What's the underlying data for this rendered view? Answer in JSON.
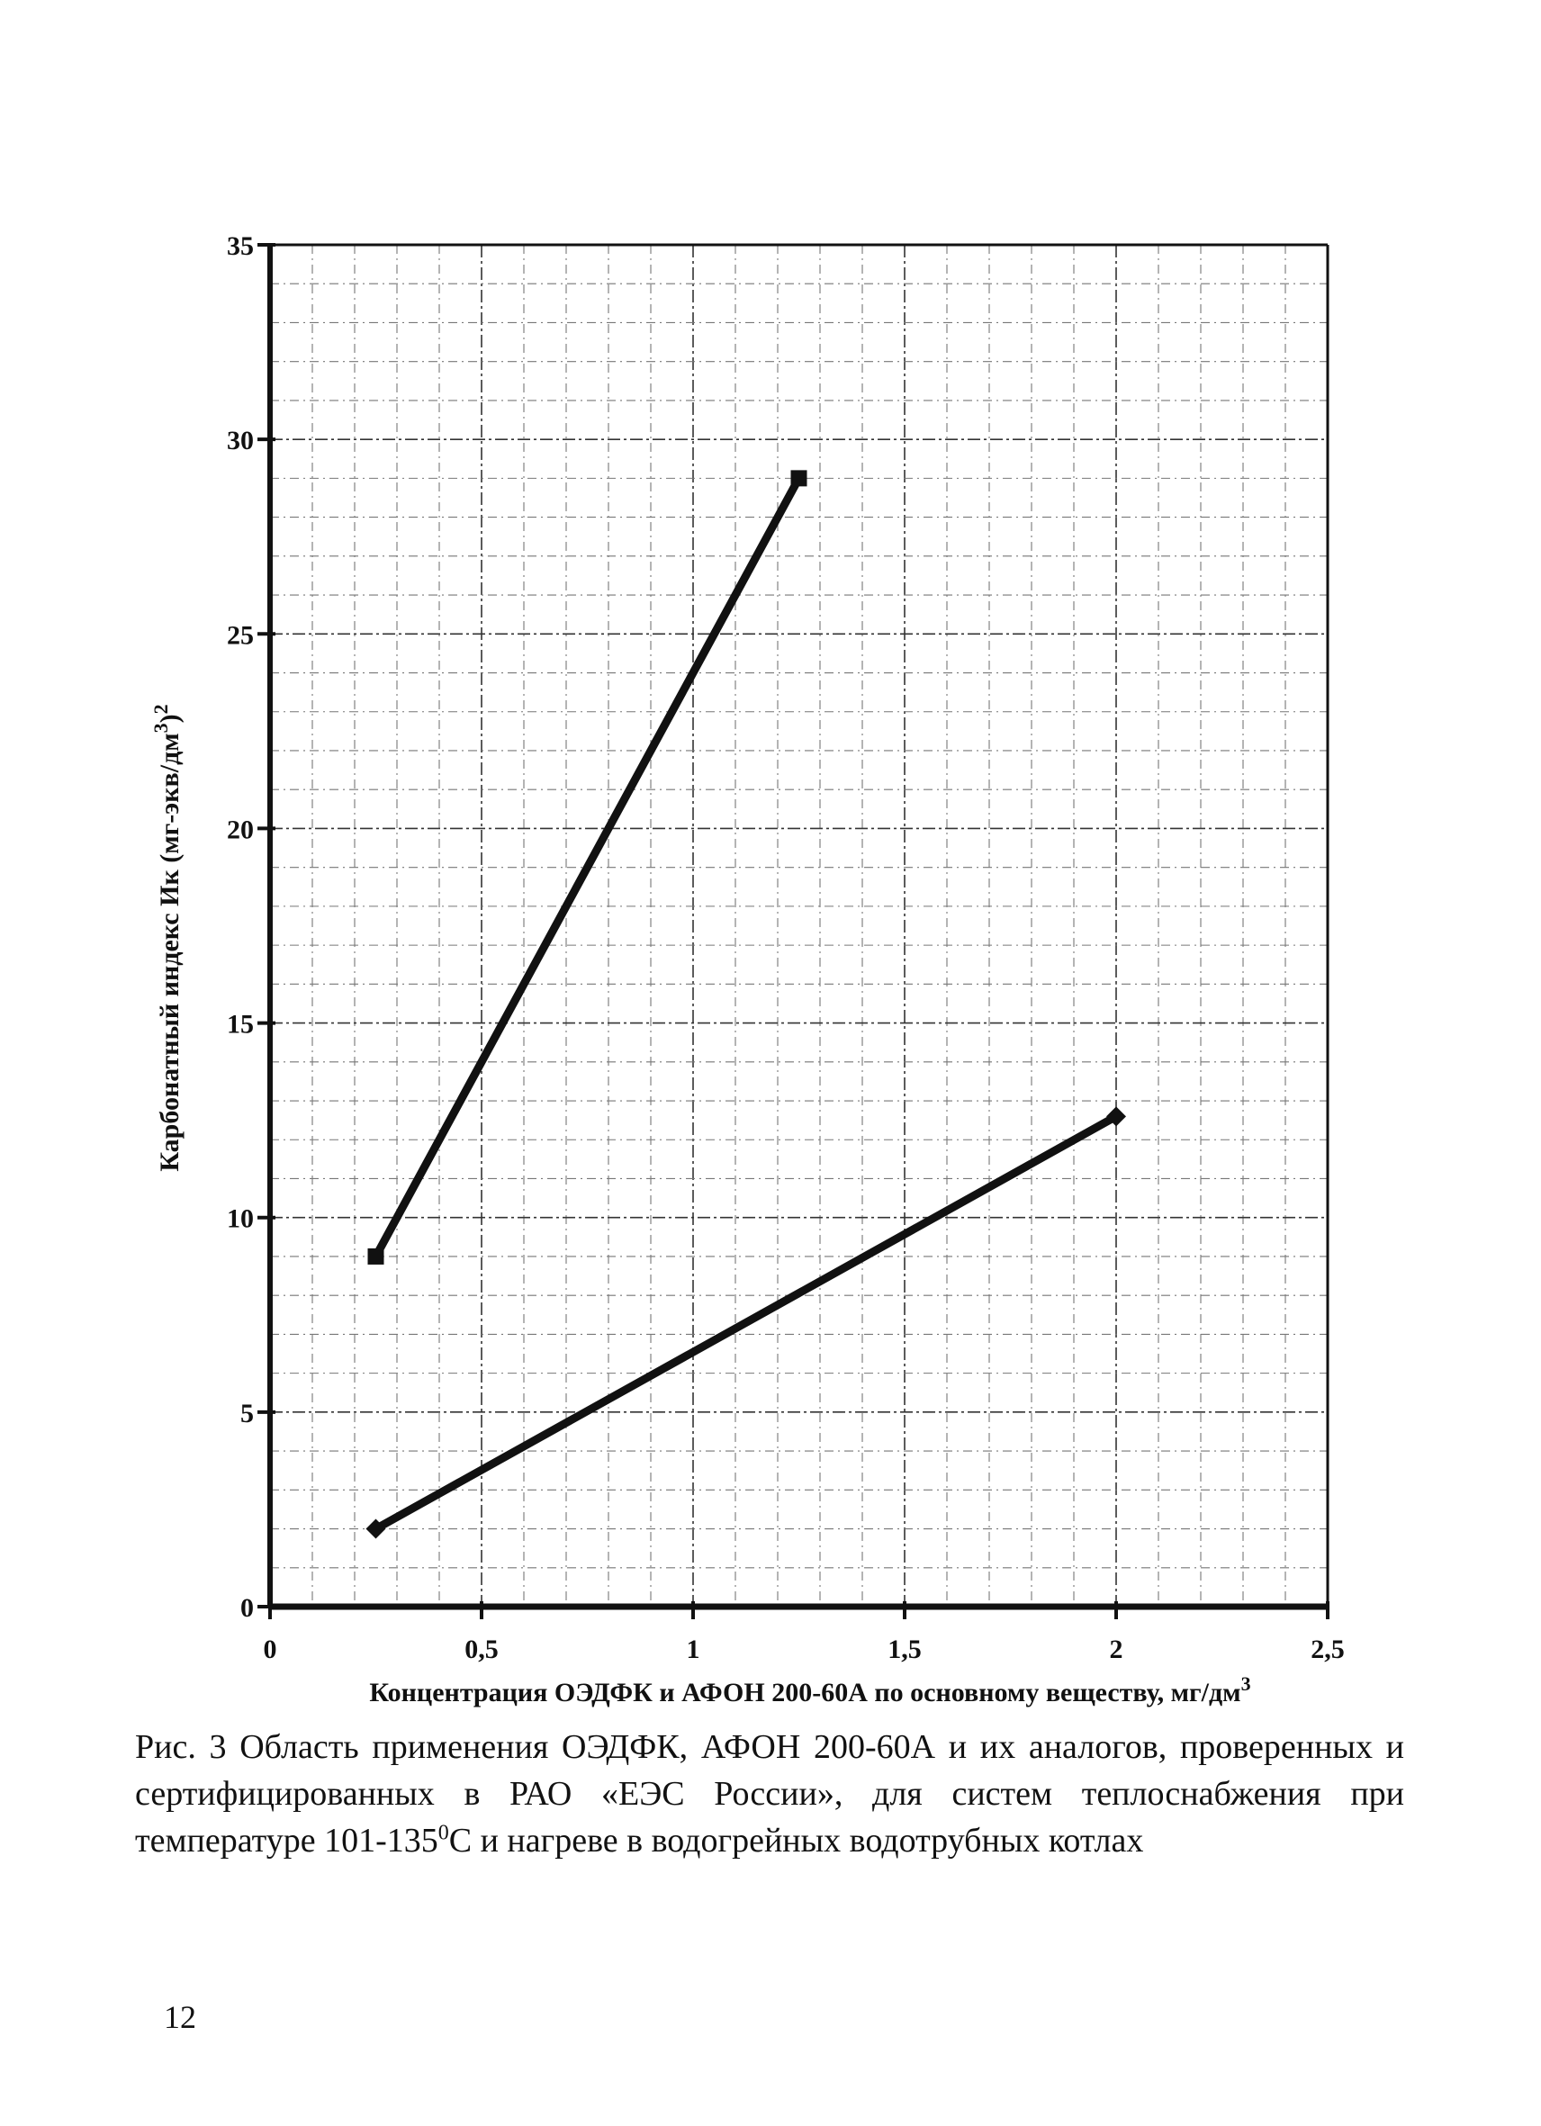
{
  "chart_data": {
    "type": "line",
    "title": "",
    "xlabel": "Концентрация ОЭДФК и АФОН 200-60А по основному веществу, мг/дм",
    "xlabel_sup": "3",
    "ylabel": "Карбонатный индекс Ик (мг-экв/дм",
    "ylabel_sup1": "3",
    "ylabel_mid": ")",
    "ylabel_sup2": "2",
    "xlim": [
      0,
      2.5
    ],
    "ylim": [
      0,
      35
    ],
    "x_ticks": [
      "0",
      "0,5",
      "1",
      "1,5",
      "2",
      "2,5"
    ],
    "y_ticks": [
      "0",
      "5",
      "10",
      "15",
      "20",
      "25",
      "30",
      "35"
    ],
    "grid": true,
    "legend": false,
    "series": [
      {
        "marker": "square",
        "color": "#111111",
        "points": [
          [
            0.25,
            9
          ],
          [
            1.25,
            29
          ]
        ]
      },
      {
        "marker": "diamond",
        "color": "#111111",
        "points": [
          [
            0.25,
            2
          ],
          [
            2.0,
            12.6
          ]
        ]
      }
    ]
  },
  "caption": {
    "text_before": "Рис. 3 Область применения ОЭДФК, АФОН 200-60А и их аналогов, прове­ренных и сертифицированных в РАО «ЕЭС России», для систем теплоснаб­жения при температуре 101-135",
    "degree_sup": "0",
    "text_after": "С и нагреве в водогрейных водотрубных котлах"
  },
  "page_number": "12"
}
